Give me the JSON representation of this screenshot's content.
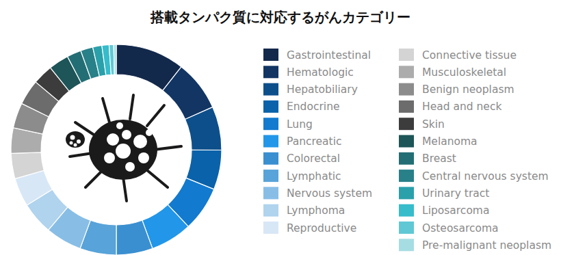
{
  "chart_data": {
    "type": "donut",
    "title": "搭載タンパク質に対応するがんカテゴリー",
    "categories": [
      "Gastrointestinal",
      "Hematologic",
      "Hepatobiliary",
      "Endocrine",
      "Lung",
      "Pancreatic",
      "Colorectal",
      "Lymphatic",
      "Nervous system",
      "Lymphoma",
      "Reproductive",
      "Connective tissue",
      "Musculoskeletal",
      "Benign neoplasm",
      "Head and neck",
      "Skin",
      "Melanoma",
      "Breast",
      "Central nervous system",
      "Urinary tract",
      "Liposarcoma",
      "Osteosarcoma",
      "Pre-malignant neoplasm"
    ],
    "values": [
      10.6,
      7.8,
      6.7,
      6.1,
      6.9,
      6.4,
      5.6,
      5.6,
      5.6,
      5.0,
      4.4,
      3.9,
      3.9,
      3.9,
      3.9,
      3.1,
      3.1,
      2.2,
      1.9,
      1.4,
      1.1,
      0.7,
      0.4
    ],
    "colors": [
      "#13294b",
      "#123563",
      "#0d4f8b",
      "#0a62aa",
      "#127acf",
      "#2296e8",
      "#3a8fd0",
      "#58a3d9",
      "#88bee6",
      "#b0d3ee",
      "#d8e7f6",
      "#d4d4d4",
      "#acacac",
      "#8c8c8c",
      "#6c6c6c",
      "#3c3c3c",
      "#1d5558",
      "#236e74",
      "#288088",
      "#2aa0aa",
      "#36bccb",
      "#60c8d4",
      "#a6dde2"
    ],
    "legend": "right"
  }
}
